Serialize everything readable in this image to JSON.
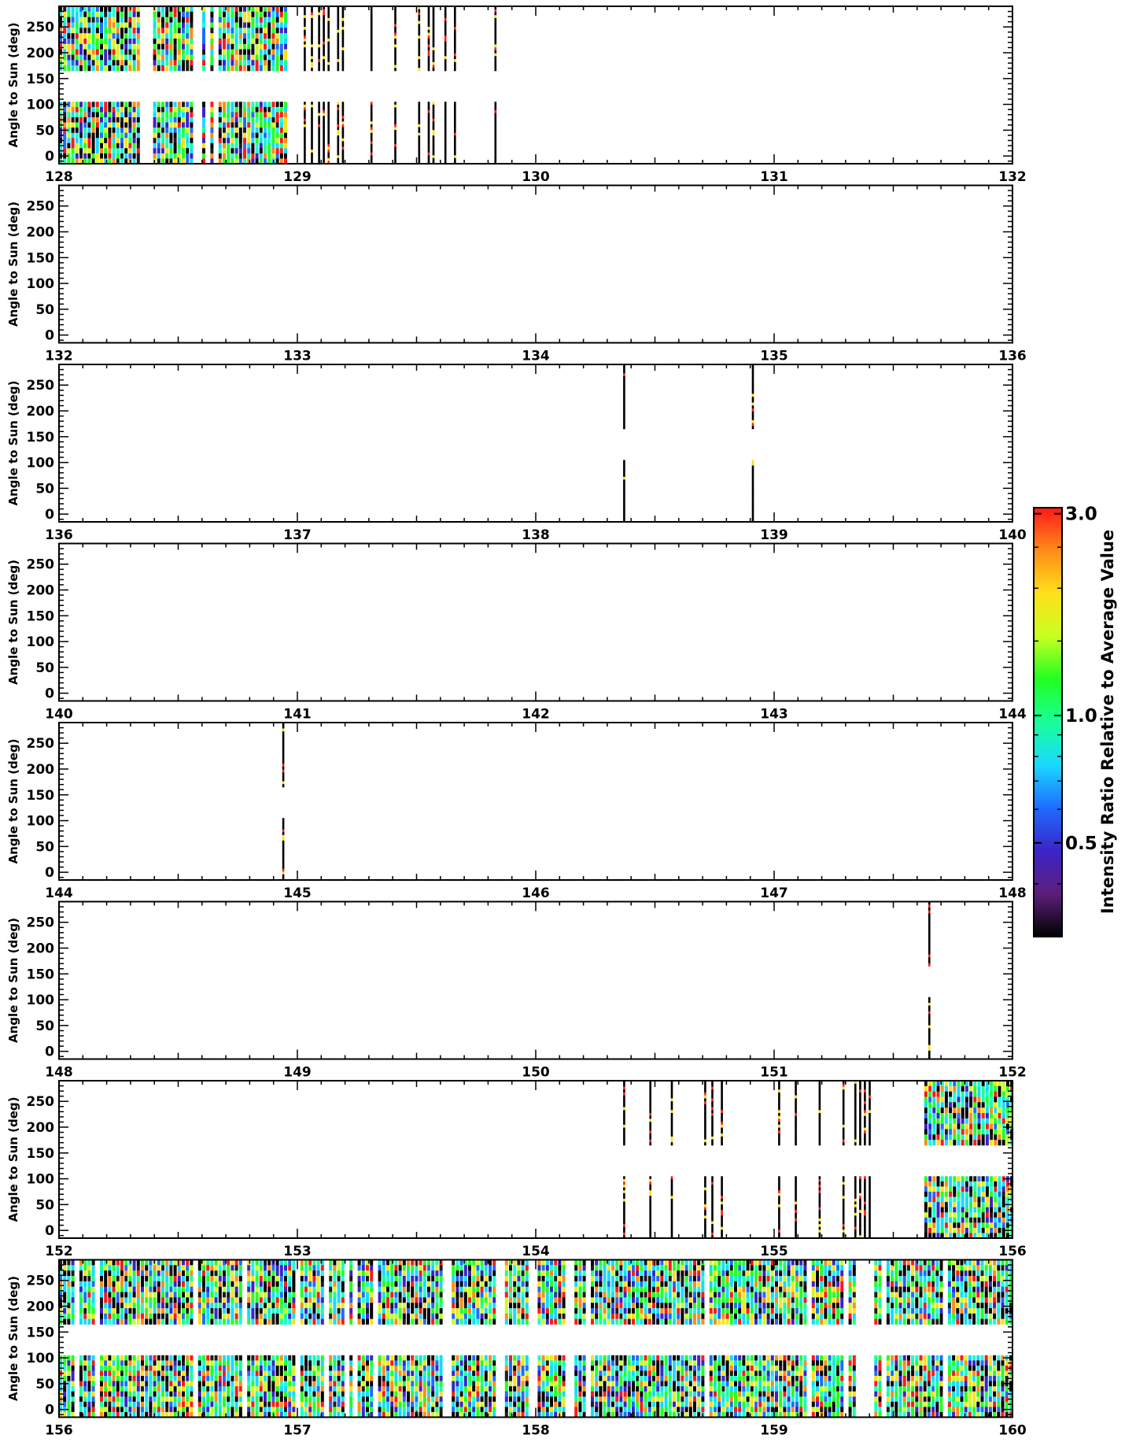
{
  "figure": {
    "ylabel": "Angle to Sun (deg)",
    "colorbar_label": "Intensity Ratio Relative to Average Value"
  },
  "colorbar": {
    "ticks": [
      "3.0",
      "1.0",
      "0.5"
    ],
    "tick_values": [
      3.0,
      1.0,
      0.5
    ],
    "range": [
      0.3,
      3.1
    ],
    "scale": "log",
    "colormap": "rainbow-black",
    "colors": [
      "#000000",
      "#5c1f7a",
      "#3b24c8",
      "#1f6cff",
      "#19d9ff",
      "#19ff9a",
      "#22ff22",
      "#c8ff22",
      "#ffe019",
      "#ff8c19",
      "#ff1919"
    ]
  },
  "chart_data": [
    {
      "type": "heatmap",
      "panel": 1,
      "xlim": [
        128,
        132
      ],
      "ylim": [
        -15,
        290
      ],
      "xticks": [
        "128",
        "129",
        "130",
        "131",
        "132"
      ],
      "yticks": [
        "0",
        "50",
        "100",
        "150",
        "200",
        "250"
      ],
      "angle_bands": [
        [
          -15,
          105
        ],
        [
          165,
          290
        ]
      ],
      "coverage": [
        {
          "kind": "dense",
          "start": 128.0,
          "end": 128.96
        },
        {
          "kind": "sparse",
          "times": [
            129.03,
            129.06,
            129.09,
            129.11,
            129.13,
            129.17,
            129.19,
            129.31,
            129.41,
            129.51,
            129.55,
            129.57,
            129.62,
            129.66,
            129.83
          ]
        }
      ]
    },
    {
      "type": "heatmap",
      "panel": 2,
      "xlim": [
        132,
        136
      ],
      "ylim": [
        -15,
        290
      ],
      "xticks": [
        "132",
        "133",
        "134",
        "135",
        "136"
      ],
      "yticks": [
        "0",
        "50",
        "100",
        "150",
        "200",
        "250"
      ],
      "angle_bands": [
        [
          -15,
          105
        ],
        [
          165,
          290
        ]
      ],
      "coverage": []
    },
    {
      "type": "heatmap",
      "panel": 3,
      "xlim": [
        136,
        140
      ],
      "ylim": [
        -15,
        290
      ],
      "xticks": [
        "136",
        "137",
        "138",
        "139",
        "140"
      ],
      "yticks": [
        "0",
        "50",
        "100",
        "150",
        "200",
        "250"
      ],
      "angle_bands": [
        [
          -15,
          105
        ],
        [
          165,
          290
        ]
      ],
      "coverage": [
        {
          "kind": "sparse",
          "times": [
            138.37,
            138.91
          ]
        }
      ]
    },
    {
      "type": "heatmap",
      "panel": 4,
      "xlim": [
        140,
        144
      ],
      "ylim": [
        -15,
        290
      ],
      "xticks": [
        "140",
        "141",
        "142",
        "143",
        "144"
      ],
      "yticks": [
        "0",
        "50",
        "100",
        "150",
        "200",
        "250"
      ],
      "angle_bands": [
        [
          -15,
          105
        ],
        [
          165,
          290
        ]
      ],
      "coverage": []
    },
    {
      "type": "heatmap",
      "panel": 5,
      "xlim": [
        144,
        148
      ],
      "ylim": [
        -15,
        290
      ],
      "xticks": [
        "144",
        "145",
        "146",
        "147",
        "148"
      ],
      "yticks": [
        "0",
        "50",
        "100",
        "150",
        "200",
        "250"
      ],
      "angle_bands": [
        [
          -15,
          105
        ],
        [
          165,
          290
        ]
      ],
      "coverage": [
        {
          "kind": "sparse",
          "times": [
            144.94
          ]
        }
      ]
    },
    {
      "type": "heatmap",
      "panel": 6,
      "xlim": [
        148,
        152
      ],
      "ylim": [
        -15,
        290
      ],
      "xticks": [
        "148",
        "149",
        "150",
        "151",
        "152"
      ],
      "yticks": [
        "0",
        "50",
        "100",
        "150",
        "200",
        "250"
      ],
      "angle_bands": [
        [
          -15,
          105
        ],
        [
          165,
          290
        ]
      ],
      "coverage": [
        {
          "kind": "sparse",
          "times": [
            151.65
          ]
        }
      ]
    },
    {
      "type": "heatmap",
      "panel": 7,
      "xlim": [
        152,
        156
      ],
      "ylim": [
        -15,
        290
      ],
      "xticks": [
        "152",
        "153",
        "154",
        "155",
        "156"
      ],
      "yticks": [
        "0",
        "50",
        "100",
        "150",
        "200",
        "250"
      ],
      "angle_bands": [
        [
          -15,
          105
        ],
        [
          165,
          290
        ]
      ],
      "coverage": [
        {
          "kind": "sparse",
          "times": [
            154.37,
            154.48,
            154.57,
            154.71,
            154.74,
            154.78,
            155.02,
            155.09,
            155.19,
            155.29,
            155.34,
            155.36,
            155.38,
            155.4
          ]
        },
        {
          "kind": "dense",
          "start": 155.63,
          "end": 156.0
        }
      ]
    },
    {
      "type": "heatmap",
      "panel": 8,
      "xlim": [
        156,
        160
      ],
      "ylim": [
        -15,
        290
      ],
      "xticks": [
        "156",
        "157",
        "158",
        "159",
        "160"
      ],
      "yticks": [
        "0",
        "50",
        "100",
        "150",
        "200",
        "250"
      ],
      "angle_bands": [
        [
          -15,
          105
        ],
        [
          165,
          290
        ]
      ],
      "coverage": [
        {
          "kind": "dense",
          "start": 156.0,
          "end": 159.34
        },
        {
          "kind": "dense",
          "start": 159.42,
          "end": 160.0
        }
      ]
    }
  ]
}
